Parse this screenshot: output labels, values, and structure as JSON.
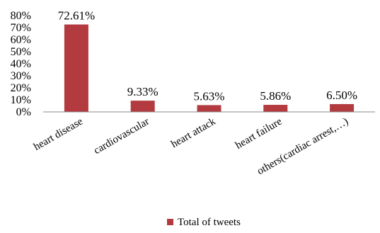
{
  "chart_data": {
    "type": "bar",
    "categories": [
      "heart disease",
      "cardiovascular",
      "heart attack",
      "heart failure",
      "others(cardiac arrest,…)"
    ],
    "series": [
      {
        "name": "Total of tweets",
        "values": [
          72.61,
          9.33,
          5.63,
          5.86,
          6.5
        ],
        "data_labels": [
          "72.61%",
          "9.33%",
          "5.63%",
          "5.86%",
          "6.50%"
        ],
        "color": "#b33a3f"
      }
    ],
    "yticks": [
      0,
      10,
      20,
      30,
      40,
      50,
      60,
      70,
      80
    ],
    "ytick_labels": [
      "0%",
      "10%",
      "20%",
      "30%",
      "40%",
      "50%",
      "60%",
      "70%",
      "80%"
    ],
    "ylim": [
      0,
      80
    ],
    "title": "",
    "xlabel": "",
    "ylabel": "",
    "grid": false,
    "legend_position": "bottom"
  },
  "legend": {
    "label": "Total of tweets"
  }
}
